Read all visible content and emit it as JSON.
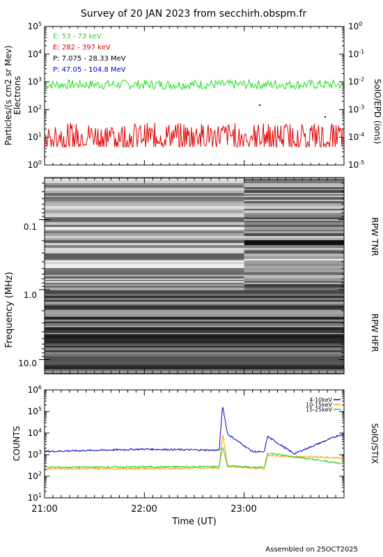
{
  "page": {
    "title": "Survey of 20 JAN 2023 from secchirh.obspm.fr",
    "footer": "Assembled on 25OCT2025"
  },
  "chart_data": [
    {
      "type": "line",
      "panel": "epd",
      "ylabel_left": "Particles/(s cm2 sr Mev)",
      "ylabel_left2": "Electrons",
      "ylabel_right": "SolO/EPD (ions)",
      "yscale": "log",
      "ylim": [
        1,
        100000
      ],
      "ylim_right": [
        1e-05,
        1
      ],
      "left_tick_labels": [
        "10^0",
        "10^1",
        "10^2",
        "10^3",
        "10^4",
        "10^5"
      ],
      "right_tick_labels": [
        "10^-5",
        "10^-4",
        "10^-3",
        "10^-2",
        "10^-1",
        "10^0"
      ],
      "legend": [
        {
          "label": "E: 53 - 73 keV",
          "color": "#22dd22"
        },
        {
          "label": "E: 282 - 397 keV",
          "color": "#dd0000"
        },
        {
          "label": "P: 7.075 - 28.33 MeV",
          "color": "#000000"
        },
        {
          "label": "P: 47.05 - 104.8 MeV",
          "color": "#0000cc"
        }
      ],
      "series": [
        {
          "level": 800,
          "color": "#22dd22"
        },
        {
          "level": 12,
          "color": "#dd0000"
        }
      ]
    },
    {
      "type": "heatmap",
      "panel": "rpw",
      "ylabel": "Frequency (MHz)",
      "yscale": "log",
      "ylim": [
        0.025,
        16
      ],
      "y_tick_labels": [
        "0.1",
        "1.0",
        "10.0"
      ],
      "right_labels": [
        "RPW TNR",
        "RPW HFR"
      ],
      "colormap": "grayscale"
    },
    {
      "type": "line",
      "panel": "stix",
      "ylabel": "COUNTS",
      "ylabel_right": "SolO/STIX",
      "yscale": "log",
      "ylim": [
        10,
        1000000
      ],
      "y_tick_labels": [
        "10^1",
        "10^2",
        "10^3",
        "10^4",
        "10^5",
        "10^6"
      ],
      "xlabel": "Time (UT)",
      "x_tick_labels": [
        "21:00",
        "22:00",
        "23:00"
      ],
      "legend": [
        {
          "label": "4-10keV",
          "color": "#0000cc"
        },
        {
          "label": "10-15keV",
          "color": "#ff9900"
        },
        {
          "label": "15-25keV",
          "color": "#22cc22"
        }
      ],
      "series": [
        {
          "name": "4-10keV",
          "color": "#0000cc",
          "baseline": 1400,
          "x": [
            "21:00",
            "22:00",
            "22:45",
            "22:47",
            "22:50",
            "23:05",
            "23:12",
            "23:14",
            "23:30",
            "23:57"
          ],
          "y": [
            1400,
            1800,
            1600,
            200000,
            9000,
            1400,
            1300,
            7000,
            1100,
            8000
          ]
        },
        {
          "name": "10-15keV",
          "color": "#ff9900",
          "baseline": 220,
          "x": [
            "21:00",
            "22:45",
            "22:47",
            "22:50",
            "23:12",
            "23:14",
            "23:57"
          ],
          "y": [
            220,
            240,
            9000,
            300,
            220,
            900,
            700
          ]
        },
        {
          "name": "15-25keV",
          "color": "#22cc22",
          "baseline": 260,
          "x": [
            "21:00",
            "22:45",
            "22:47",
            "22:50",
            "23:12",
            "23:14",
            "23:57"
          ],
          "y": [
            260,
            280,
            2500,
            300,
            250,
            1200,
            400
          ]
        }
      ]
    }
  ]
}
